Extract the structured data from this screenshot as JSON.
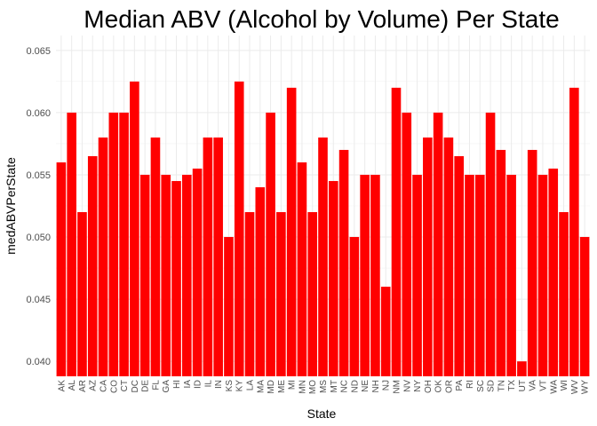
{
  "chart_data": {
    "type": "bar",
    "title": "Median ABV (Alcohol by Volume) Per State",
    "xlabel": "State",
    "ylabel": "medABVPerState",
    "ylim": [
      0.0388,
      0.0662
    ],
    "yticks": [
      "0.040",
      "0.045",
      "0.050",
      "0.055",
      "0.060",
      "0.065"
    ],
    "grid": true,
    "bar_color": "#ff0000",
    "categories": [
      "AK",
      "AL",
      "AR",
      "AZ",
      "CA",
      "CO",
      "CT",
      "DC",
      "DE",
      "FL",
      "GA",
      "HI",
      "IA",
      "ID",
      "IL",
      "IN",
      "KS",
      "KY",
      "LA",
      "MA",
      "MD",
      "ME",
      "MI",
      "MN",
      "MO",
      "MS",
      "MT",
      "NC",
      "ND",
      "NE",
      "NH",
      "NJ",
      "NM",
      "NV",
      "NY",
      "OH",
      "OK",
      "OR",
      "PA",
      "RI",
      "SC",
      "SD",
      "TN",
      "TX",
      "UT",
      "VA",
      "VT",
      "WA",
      "WI",
      "WV",
      "WY"
    ],
    "values": [
      0.056,
      0.06,
      0.052,
      0.0565,
      0.058,
      0.06,
      0.06,
      0.0625,
      0.055,
      0.058,
      0.055,
      0.0545,
      0.055,
      0.0555,
      0.058,
      0.058,
      0.05,
      0.0625,
      0.052,
      0.054,
      0.06,
      0.052,
      0.062,
      0.056,
      0.052,
      0.058,
      0.0545,
      0.057,
      0.05,
      0.055,
      0.055,
      0.046,
      0.062,
      0.06,
      0.055,
      0.058,
      0.06,
      0.058,
      0.0565,
      0.055,
      0.055,
      0.06,
      0.057,
      0.055,
      0.04,
      0.057,
      0.055,
      0.0555,
      0.052,
      0.062,
      0.05
    ]
  }
}
